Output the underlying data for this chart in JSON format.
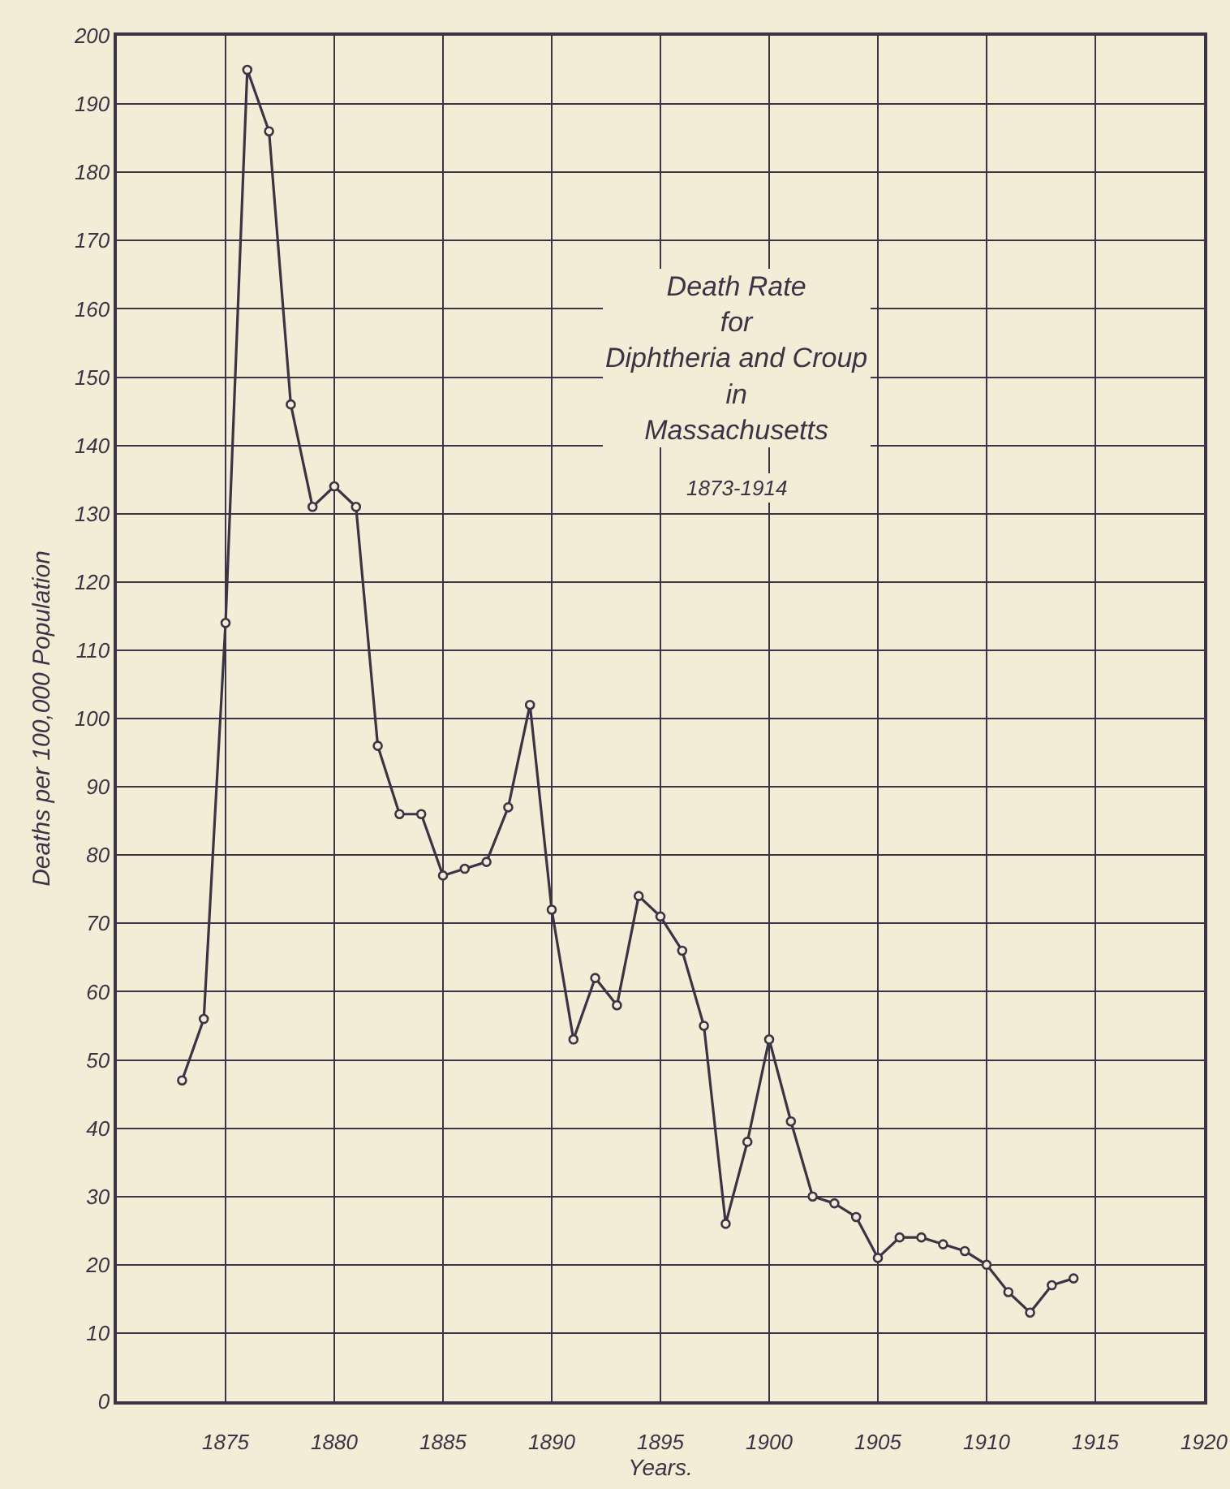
{
  "chart_data": {
    "type": "line",
    "title": "Death Rate\nfor\nDiphtheria and Croup\nin\nMassachusetts",
    "subtitle": "1873-1914",
    "xlabel": "Years.",
    "ylabel": "Deaths per 100,000 Population",
    "x": [
      1873,
      1874,
      1875,
      1876,
      1877,
      1878,
      1879,
      1880,
      1881,
      1882,
      1883,
      1884,
      1885,
      1886,
      1887,
      1888,
      1889,
      1890,
      1891,
      1892,
      1893,
      1894,
      1895,
      1896,
      1897,
      1898,
      1899,
      1900,
      1901,
      1902,
      1903,
      1904,
      1905,
      1906,
      1907,
      1908,
      1909,
      1910,
      1911,
      1912,
      1913,
      1914
    ],
    "series": [
      {
        "color": "#3a3445",
        "values": [
          47,
          56,
          114,
          195,
          186,
          146,
          131,
          134,
          131,
          96,
          86,
          86,
          77,
          78,
          79,
          87,
          102,
          72,
          53,
          62,
          58,
          74,
          71,
          66,
          55,
          26,
          38,
          53,
          41,
          30,
          29,
          27,
          21,
          24,
          24,
          23,
          22,
          20,
          16,
          13,
          17,
          18
        ]
      }
    ],
    "xlim": [
      1870,
      1920
    ],
    "xticks": [
      1875,
      1880,
      1885,
      1890,
      1895,
      1900,
      1905,
      1910,
      1915,
      1920
    ],
    "ylim": [
      0,
      200
    ],
    "yticks": [
      0,
      10,
      20,
      30,
      40,
      50,
      60,
      70,
      80,
      90,
      100,
      110,
      120,
      130,
      140,
      150,
      160,
      170,
      180,
      190,
      200
    ],
    "grid": true,
    "marker": "circle",
    "line_style": "solid"
  }
}
